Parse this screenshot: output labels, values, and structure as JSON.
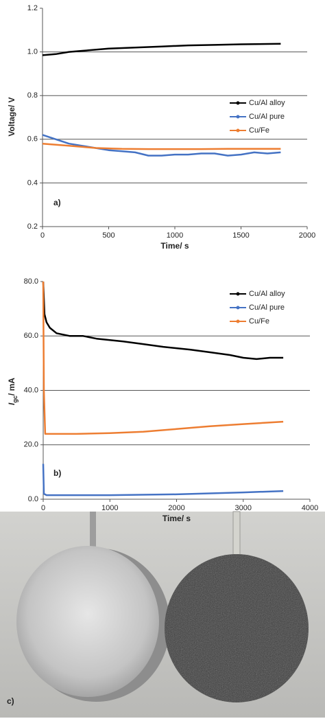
{
  "chart_data": [
    {
      "type": "line",
      "panel_label": "a)",
      "x_label": "Time/ s",
      "y_label": [
        "Voltage/ V"
      ],
      "xlim": [
        0,
        2000
      ],
      "xticks": [
        0,
        500,
        1000,
        1500,
        2000
      ],
      "ylim": [
        0.2,
        1.2
      ],
      "yticks": [
        0.2,
        0.4,
        0.6,
        0.8,
        {
          "value": 1,
          "label": "1.0"
        },
        1.2
      ],
      "grid": true,
      "series": [
        {
          "name": "Cu/Al alloy",
          "color": "#000000",
          "x": [
            0,
            100,
            200,
            300,
            400,
            500,
            700,
            900,
            1100,
            1300,
            1500,
            1800
          ],
          "values": [
            0.985,
            0.99,
            1.0,
            1.005,
            1.01,
            1.015,
            1.02,
            1.025,
            1.03,
            1.032,
            1.035,
            1.037
          ]
        },
        {
          "name": "Cu/Al pure",
          "color": "#4472c4",
          "x": [
            0,
            100,
            200,
            300,
            400,
            500,
            600,
            700,
            800,
            900,
            1000,
            1100,
            1200,
            1300,
            1400,
            1500,
            1600,
            1700,
            1800
          ],
          "values": [
            0.62,
            0.6,
            0.58,
            0.57,
            0.56,
            0.55,
            0.545,
            0.54,
            0.525,
            0.525,
            0.53,
            0.53,
            0.535,
            0.535,
            0.525,
            0.53,
            0.54,
            0.535,
            0.54
          ]
        },
        {
          "name": "Cu/Fe",
          "color": "#ed7d31",
          "x": [
            0,
            100,
            200,
            300,
            400,
            600,
            800,
            1000,
            1200,
            1400,
            1600,
            1800
          ],
          "values": [
            0.58,
            0.575,
            0.57,
            0.565,
            0.56,
            0.556,
            0.555,
            0.555,
            0.555,
            0.556,
            0.556,
            0.556
          ]
        }
      ]
    },
    {
      "type": "line",
      "panel_label": "b)",
      "x_label": "Time/ s",
      "y_label": [
        "I",
        "gc",
        "/ mA"
      ],
      "xlim": [
        0,
        4000
      ],
      "xticks": [
        0,
        1000,
        2000,
        3000,
        4000
      ],
      "ylim": [
        0,
        80
      ],
      "yticks": [
        {
          "value": 0,
          "label": "0.0"
        },
        {
          "value": 20,
          "label": "20.0"
        },
        {
          "value": 40,
          "label": "40.0"
        },
        {
          "value": 60,
          "label": "60.0"
        },
        {
          "value": 80,
          "label": "80.0"
        }
      ],
      "grid": true,
      "series": [
        {
          "name": "Cu/Al alloy",
          "color": "#000000",
          "x": [
            0,
            20,
            50,
            100,
            200,
            400,
            600,
            800,
            1000,
            1200,
            1500,
            1800,
            2000,
            2200,
            2500,
            2800,
            3000,
            3200,
            3400,
            3600
          ],
          "values": [
            80,
            68,
            65,
            63,
            61,
            60,
            60,
            59,
            58.5,
            58,
            57,
            56,
            55.5,
            55,
            54,
            53,
            52,
            51.5,
            52,
            52
          ]
        },
        {
          "name": "Cu/Al pure",
          "color": "#4472c4",
          "x": [
            0,
            10,
            50,
            1000,
            2000,
            3000,
            3600
          ],
          "values": [
            13,
            2,
            1.5,
            1.5,
            1.8,
            2.5,
            3
          ]
        },
        {
          "name": "Cu/Fe",
          "color": "#ed7d31",
          "x": [
            0,
            10,
            30,
            200,
            500,
            1000,
            1500,
            2000,
            2500,
            3000,
            3600
          ],
          "values": [
            80,
            40,
            24,
            24,
            24,
            24.3,
            24.8,
            25.8,
            26.8,
            27.6,
            28.5
          ]
        }
      ]
    }
  ],
  "photo": {
    "label": "c)"
  }
}
